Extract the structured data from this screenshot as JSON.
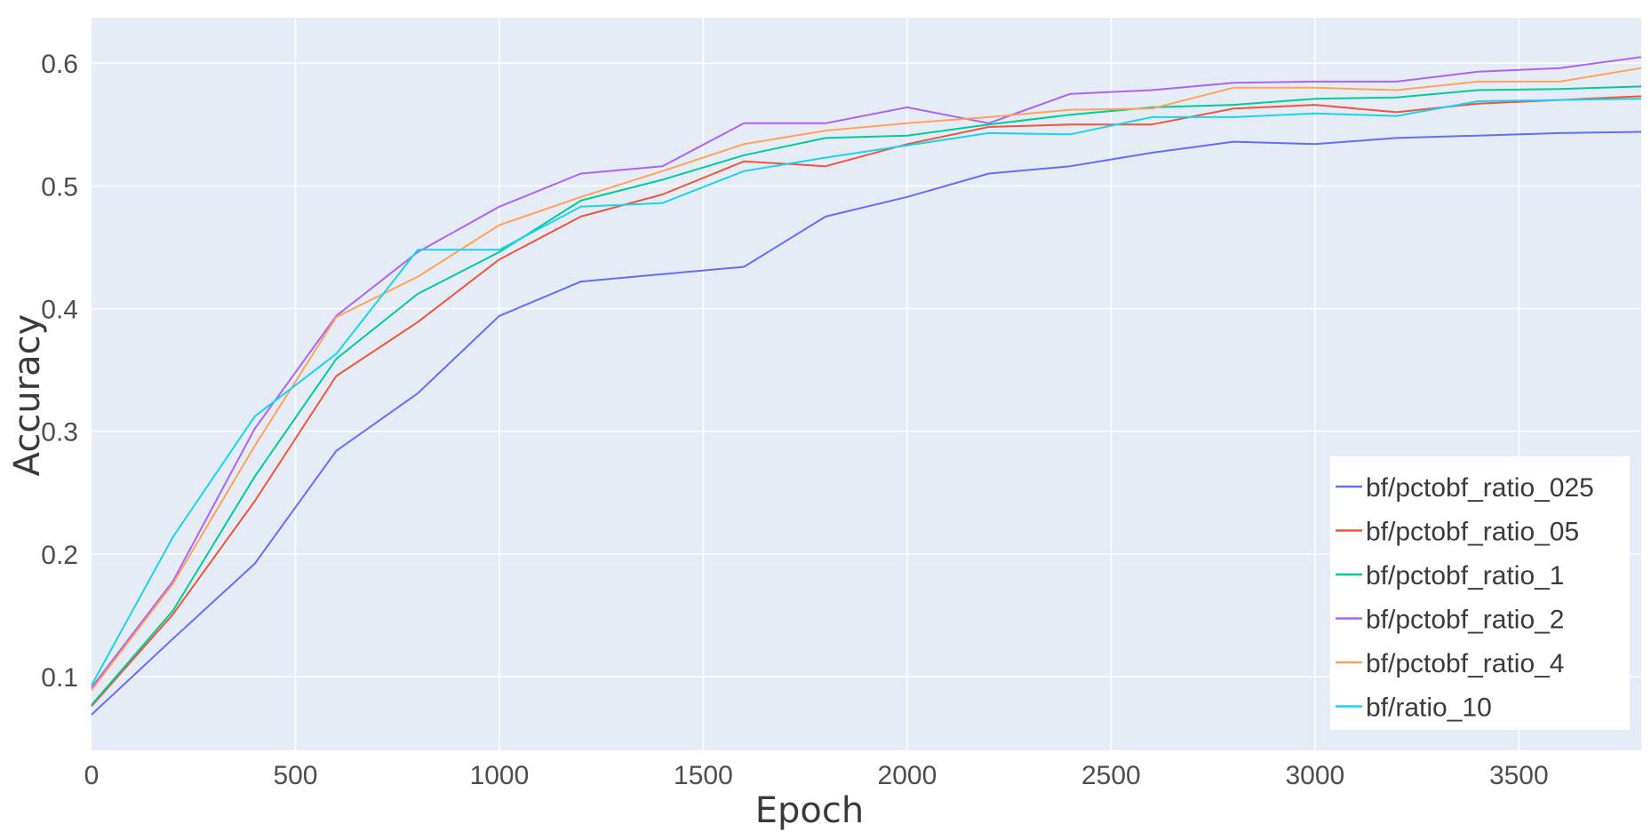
{
  "chart_data": {
    "type": "line",
    "xlabel": "Epoch",
    "ylabel": "Accuracy",
    "xlim": [
      0,
      3800
    ],
    "ylim": [
      0.04,
      0.637
    ],
    "xticks": [
      0,
      500,
      1000,
      1500,
      2000,
      2500,
      3000,
      3500
    ],
    "xtick_labels": [
      "0",
      "500",
      "1000",
      "1500",
      "2000",
      "2500",
      "3000",
      "3500"
    ],
    "yticks": [
      0.1,
      0.2,
      0.3,
      0.4,
      0.5,
      0.6
    ],
    "ytick_labels": [
      "0.1",
      "0.2",
      "0.3",
      "0.4",
      "0.5",
      "0.6"
    ],
    "grid": true,
    "legend_position": "bottom-right",
    "background": "#e5ecf6",
    "series": [
      {
        "name": "bf/pctobf_ratio_025",
        "color": "#636efa",
        "x": [
          0,
          200,
          400,
          600,
          800,
          1000,
          1200,
          1400,
          1600,
          1800,
          2000,
          2200,
          2400,
          2600,
          2800,
          3000,
          3200,
          3400,
          3600,
          3800
        ],
        "y": [
          0.069,
          0.131,
          0.192,
          0.284,
          0.331,
          0.394,
          0.422,
          0.428,
          0.434,
          0.475,
          0.491,
          0.51,
          0.516,
          0.527,
          0.536,
          0.534,
          0.539,
          0.541,
          0.543,
          0.544
        ]
      },
      {
        "name": "bf/pctobf_ratio_05",
        "color": "#ef553b",
        "x": [
          0,
          200,
          400,
          600,
          800,
          1000,
          1200,
          1400,
          1600,
          1800,
          2000,
          2200,
          2400,
          2600,
          2800,
          3000,
          3200,
          3400,
          3600,
          3800
        ],
        "y": [
          0.076,
          0.151,
          0.243,
          0.345,
          0.389,
          0.44,
          0.475,
          0.493,
          0.52,
          0.516,
          0.534,
          0.548,
          0.55,
          0.55,
          0.563,
          0.566,
          0.56,
          0.567,
          0.57,
          0.573
        ]
      },
      {
        "name": "bf/pctobf_ratio_1",
        "color": "#00cc96",
        "x": [
          0,
          200,
          400,
          600,
          800,
          1000,
          1200,
          1400,
          1600,
          1800,
          2000,
          2200,
          2400,
          2600,
          2800,
          3000,
          3200,
          3400,
          3600,
          3800
        ],
        "y": [
          0.077,
          0.154,
          0.263,
          0.359,
          0.412,
          0.446,
          0.488,
          0.505,
          0.525,
          0.539,
          0.541,
          0.55,
          0.558,
          0.564,
          0.566,
          0.571,
          0.572,
          0.578,
          0.579,
          0.581
        ]
      },
      {
        "name": "bf/pctobf_ratio_2",
        "color": "#ab63fa",
        "x": [
          0,
          200,
          400,
          600,
          800,
          1000,
          1200,
          1400,
          1600,
          1800,
          2000,
          2200,
          2400,
          2600,
          2800,
          3000,
          3200,
          3400,
          3600,
          3800
        ],
        "y": [
          0.091,
          0.178,
          0.302,
          0.394,
          0.446,
          0.483,
          0.51,
          0.516,
          0.551,
          0.551,
          0.564,
          0.551,
          0.575,
          0.578,
          0.584,
          0.585,
          0.585,
          0.593,
          0.596,
          0.605
        ]
      },
      {
        "name": "bf/pctobf_ratio_4",
        "color": "#ffa15a",
        "x": [
          0,
          200,
          400,
          600,
          800,
          1000,
          1200,
          1400,
          1600,
          1800,
          2000,
          2200,
          2400,
          2600,
          2800,
          3000,
          3200,
          3400,
          3600,
          3800
        ],
        "y": [
          0.089,
          0.176,
          0.288,
          0.393,
          0.426,
          0.468,
          0.491,
          0.512,
          0.534,
          0.545,
          0.551,
          0.556,
          0.562,
          0.563,
          0.58,
          0.58,
          0.578,
          0.585,
          0.585,
          0.596
        ]
      },
      {
        "name": "bf/ratio_10",
        "color": "#19d3f3",
        "x": [
          0,
          200,
          400,
          600,
          800,
          1000,
          1200,
          1400,
          1600,
          1800,
          2000,
          2200,
          2400,
          2600,
          2800,
          3000,
          3200,
          3400,
          3600,
          3800
        ],
        "y": [
          0.093,
          0.214,
          0.312,
          0.363,
          0.448,
          0.448,
          0.483,
          0.486,
          0.512,
          0.523,
          0.533,
          0.543,
          0.542,
          0.556,
          0.556,
          0.559,
          0.557,
          0.569,
          0.57,
          0.571
        ]
      }
    ]
  }
}
